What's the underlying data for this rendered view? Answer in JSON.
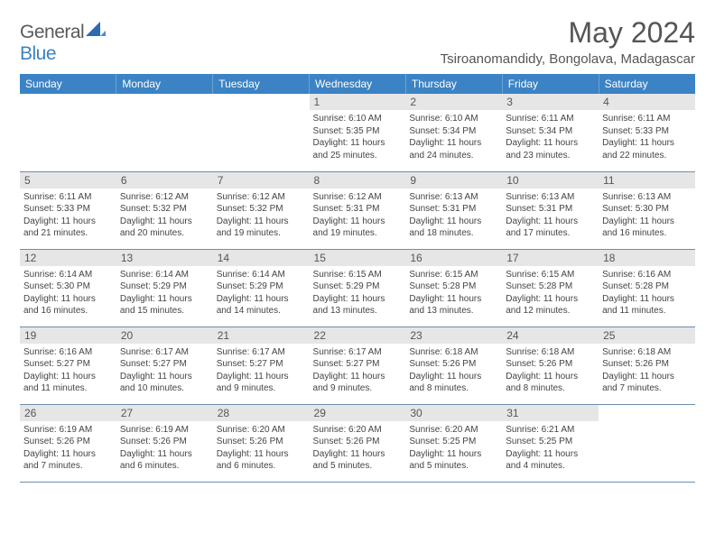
{
  "brand": {
    "part1": "General",
    "part2": "Blue"
  },
  "title": "May 2024",
  "location": "Tsiroanomandidy, Bongolava, Madagascar",
  "headers": [
    "Sunday",
    "Monday",
    "Tuesday",
    "Wednesday",
    "Thursday",
    "Friday",
    "Saturday"
  ],
  "colors": {
    "header_bg": "#3b83c4",
    "header_fg": "#ffffff",
    "daynum_bg": "#e6e6e6",
    "text": "#444444",
    "rule": "#6d8db0"
  },
  "weeks": [
    [
      null,
      null,
      null,
      {
        "n": "1",
        "sr": "6:10 AM",
        "ss": "5:35 PM",
        "dl": "11 hours and 25 minutes."
      },
      {
        "n": "2",
        "sr": "6:10 AM",
        "ss": "5:34 PM",
        "dl": "11 hours and 24 minutes."
      },
      {
        "n": "3",
        "sr": "6:11 AM",
        "ss": "5:34 PM",
        "dl": "11 hours and 23 minutes."
      },
      {
        "n": "4",
        "sr": "6:11 AM",
        "ss": "5:33 PM",
        "dl": "11 hours and 22 minutes."
      }
    ],
    [
      {
        "n": "5",
        "sr": "6:11 AM",
        "ss": "5:33 PM",
        "dl": "11 hours and 21 minutes."
      },
      {
        "n": "6",
        "sr": "6:12 AM",
        "ss": "5:32 PM",
        "dl": "11 hours and 20 minutes."
      },
      {
        "n": "7",
        "sr": "6:12 AM",
        "ss": "5:32 PM",
        "dl": "11 hours and 19 minutes."
      },
      {
        "n": "8",
        "sr": "6:12 AM",
        "ss": "5:31 PM",
        "dl": "11 hours and 19 minutes."
      },
      {
        "n": "9",
        "sr": "6:13 AM",
        "ss": "5:31 PM",
        "dl": "11 hours and 18 minutes."
      },
      {
        "n": "10",
        "sr": "6:13 AM",
        "ss": "5:31 PM",
        "dl": "11 hours and 17 minutes."
      },
      {
        "n": "11",
        "sr": "6:13 AM",
        "ss": "5:30 PM",
        "dl": "11 hours and 16 minutes."
      }
    ],
    [
      {
        "n": "12",
        "sr": "6:14 AM",
        "ss": "5:30 PM",
        "dl": "11 hours and 16 minutes."
      },
      {
        "n": "13",
        "sr": "6:14 AM",
        "ss": "5:29 PM",
        "dl": "11 hours and 15 minutes."
      },
      {
        "n": "14",
        "sr": "6:14 AM",
        "ss": "5:29 PM",
        "dl": "11 hours and 14 minutes."
      },
      {
        "n": "15",
        "sr": "6:15 AM",
        "ss": "5:29 PM",
        "dl": "11 hours and 13 minutes."
      },
      {
        "n": "16",
        "sr": "6:15 AM",
        "ss": "5:28 PM",
        "dl": "11 hours and 13 minutes."
      },
      {
        "n": "17",
        "sr": "6:15 AM",
        "ss": "5:28 PM",
        "dl": "11 hours and 12 minutes."
      },
      {
        "n": "18",
        "sr": "6:16 AM",
        "ss": "5:28 PM",
        "dl": "11 hours and 11 minutes."
      }
    ],
    [
      {
        "n": "19",
        "sr": "6:16 AM",
        "ss": "5:27 PM",
        "dl": "11 hours and 11 minutes."
      },
      {
        "n": "20",
        "sr": "6:17 AM",
        "ss": "5:27 PM",
        "dl": "11 hours and 10 minutes."
      },
      {
        "n": "21",
        "sr": "6:17 AM",
        "ss": "5:27 PM",
        "dl": "11 hours and 9 minutes."
      },
      {
        "n": "22",
        "sr": "6:17 AM",
        "ss": "5:27 PM",
        "dl": "11 hours and 9 minutes."
      },
      {
        "n": "23",
        "sr": "6:18 AM",
        "ss": "5:26 PM",
        "dl": "11 hours and 8 minutes."
      },
      {
        "n": "24",
        "sr": "6:18 AM",
        "ss": "5:26 PM",
        "dl": "11 hours and 8 minutes."
      },
      {
        "n": "25",
        "sr": "6:18 AM",
        "ss": "5:26 PM",
        "dl": "11 hours and 7 minutes."
      }
    ],
    [
      {
        "n": "26",
        "sr": "6:19 AM",
        "ss": "5:26 PM",
        "dl": "11 hours and 7 minutes."
      },
      {
        "n": "27",
        "sr": "6:19 AM",
        "ss": "5:26 PM",
        "dl": "11 hours and 6 minutes."
      },
      {
        "n": "28",
        "sr": "6:20 AM",
        "ss": "5:26 PM",
        "dl": "11 hours and 6 minutes."
      },
      {
        "n": "29",
        "sr": "6:20 AM",
        "ss": "5:26 PM",
        "dl": "11 hours and 5 minutes."
      },
      {
        "n": "30",
        "sr": "6:20 AM",
        "ss": "5:25 PM",
        "dl": "11 hours and 5 minutes."
      },
      {
        "n": "31",
        "sr": "6:21 AM",
        "ss": "5:25 PM",
        "dl": "11 hours and 4 minutes."
      },
      null
    ]
  ]
}
